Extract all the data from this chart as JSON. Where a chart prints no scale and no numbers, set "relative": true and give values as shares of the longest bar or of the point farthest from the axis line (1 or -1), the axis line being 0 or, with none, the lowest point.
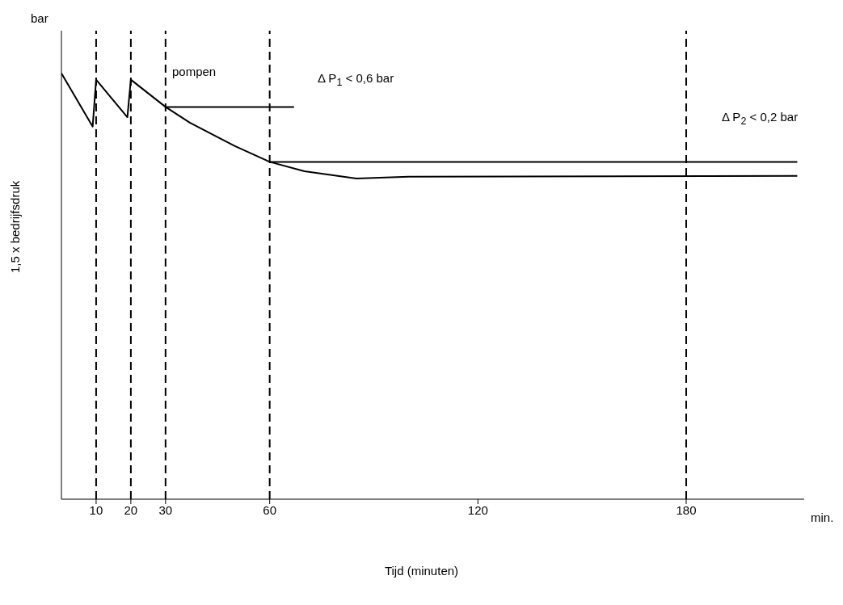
{
  "chart_data": {
    "type": "line",
    "relative": true,
    "ylabel": "bar",
    "xlabel": "Tijd (minuten)",
    "xlim": [
      0,
      214
    ],
    "xticks": [
      10,
      20,
      30,
      60,
      120,
      180
    ],
    "series": [
      {
        "color": "#000000",
        "x": [
          0,
          9,
          10,
          19,
          20,
          30,
          37,
          50,
          60,
          70,
          85,
          100,
          212
        ],
        "values": [
          1.0,
          0.875,
          0.985,
          0.897,
          0.985,
          0.921,
          0.884,
          0.829,
          0.792,
          0.77,
          0.753,
          0.757,
          0.759
        ]
      },
      {
        "color": "#000000",
        "x": [
          30,
          67
        ],
        "values": [
          0.921,
          0.921
        ]
      },
      {
        "color": "#000000",
        "x": [
          60,
          212
        ],
        "values": [
          0.792,
          0.792
        ]
      }
    ],
    "ref_lines": [
      {
        "axis": "x",
        "value": 10,
        "line_style": "dashed"
      },
      {
        "axis": "x",
        "value": 20,
        "line_style": "dashed"
      },
      {
        "axis": "x",
        "value": 30,
        "line_style": "dashed"
      },
      {
        "axis": "x",
        "value": 60,
        "line_style": "dashed"
      },
      {
        "axis": "x",
        "value": 180,
        "line_style": "dashed"
      }
    ],
    "annotations": [
      "pompen",
      "Δ P$_{1}$ < 0,6 bar",
      "Δ P$_{2}$ < 0,2 bar",
      "1,5 x bedrijfsdruk",
      "min."
    ],
    "marker": "none",
    "line_style": "solid"
  }
}
